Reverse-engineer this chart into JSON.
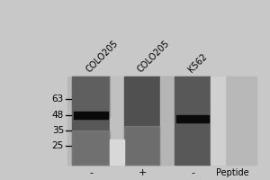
{
  "fig_bg": "#c8c8c8",
  "panel_bg": "#c8c8c8",
  "lane_labels": [
    "COLO205",
    "COLO205",
    "K562"
  ],
  "peptide_labels": [
    "-",
    "+",
    "-"
  ],
  "peptide_text": "Peptide",
  "mw_markers": [
    63,
    48,
    35,
    25
  ],
  "label_fontsize": 7,
  "mw_fontsize": 7.5,
  "band_color": "#111111",
  "lane_dark": "#4a4a4a",
  "lane_light_bg": "#b0b0b0",
  "gap_bg": "#c0c0c0"
}
